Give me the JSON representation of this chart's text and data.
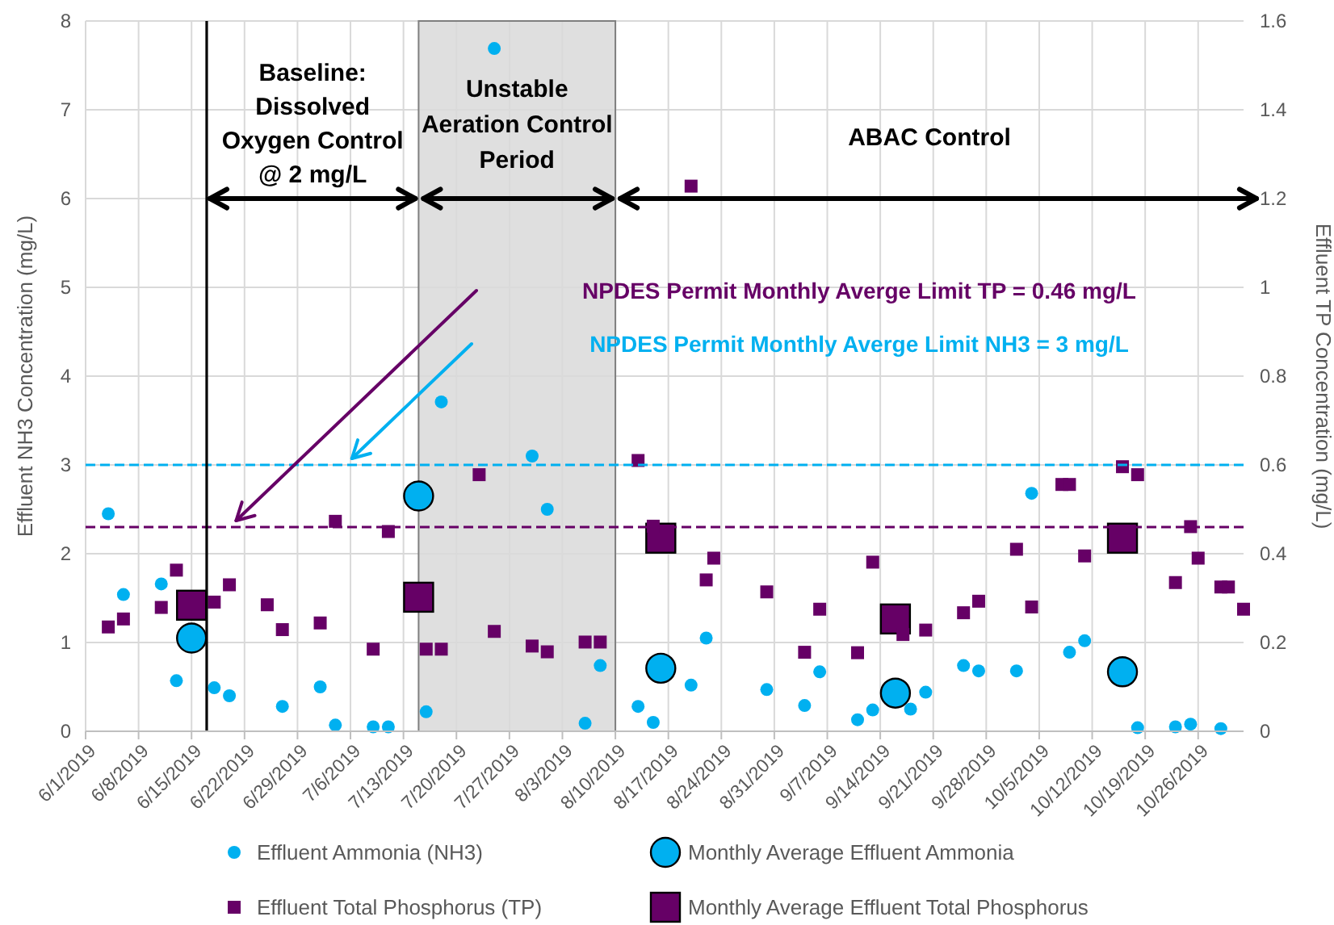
{
  "chart_data": {
    "type": "scatter",
    "ylabel": "Effluent NH3 Concentration (mg/L)",
    "y2label": "Effluent TP Concentration (mg/L)",
    "xlim": [
      "2019-06-01",
      "2019-11-01"
    ],
    "xticks": [
      {
        "value": "2019-06-01",
        "label": "6/1/2019"
      },
      {
        "value": "2019-06-08",
        "label": "6/8/2019"
      },
      {
        "value": "2019-06-15",
        "label": "6/15/2019"
      },
      {
        "value": "2019-06-22",
        "label": "6/22/2019"
      },
      {
        "value": "2019-06-29",
        "label": "6/29/2019"
      },
      {
        "value": "2019-07-06",
        "label": "7/6/2019"
      },
      {
        "value": "2019-07-13",
        "label": "7/13/2019"
      },
      {
        "value": "2019-07-20",
        "label": "7/20/2019"
      },
      {
        "value": "2019-07-27",
        "label": "7/27/2019"
      },
      {
        "value": "2019-08-03",
        "label": "8/3/2019"
      },
      {
        "value": "2019-08-10",
        "label": "8/10/2019"
      },
      {
        "value": "2019-08-17",
        "label": "8/17/2019"
      },
      {
        "value": "2019-08-24",
        "label": "8/24/2019"
      },
      {
        "value": "2019-08-31",
        "label": "8/31/2019"
      },
      {
        "value": "2019-09-07",
        "label": "9/7/2019"
      },
      {
        "value": "2019-09-14",
        "label": "9/14/2019"
      },
      {
        "value": "2019-09-21",
        "label": "9/21/2019"
      },
      {
        "value": "2019-09-28",
        "label": "9/28/2019"
      },
      {
        "value": "2019-10-05",
        "label": "10/5/2019"
      },
      {
        "value": "2019-10-12",
        "label": "10/12/2019"
      },
      {
        "value": "2019-10-19",
        "label": "10/19/2019"
      },
      {
        "value": "2019-10-26",
        "label": "10/26/2019"
      }
    ],
    "ylim": [
      0,
      8
    ],
    "yticks": [
      0,
      1,
      2,
      3,
      4,
      5,
      6,
      7,
      8
    ],
    "y2lim": [
      0,
      1.6
    ],
    "y2ticks": [
      0,
      0.2,
      0.4,
      0.6,
      0.8,
      1,
      1.2,
      1.4,
      1.6
    ],
    "grid": true,
    "legend": "bottom",
    "series": [
      {
        "name": "Effluent Ammonia (NH3)",
        "color": "#00b0f0",
        "marker": "circle",
        "x": [
          "2019-06-04",
          "2019-06-06",
          "2019-06-11",
          "2019-06-13",
          "2019-06-18",
          "2019-06-20",
          "2019-06-27",
          "2019-07-02",
          "2019-07-04",
          "2019-07-09",
          "2019-07-11",
          "2019-07-16",
          "2019-07-18",
          "2019-07-25",
          "2019-07-30",
          "2019-08-01",
          "2019-08-06",
          "2019-08-08",
          "2019-08-13",
          "2019-08-15",
          "2019-08-20",
          "2019-08-22",
          "2019-08-30",
          "2019-09-04",
          "2019-09-06",
          "2019-09-11",
          "2019-09-13",
          "2019-09-18",
          "2019-09-20",
          "2019-09-25",
          "2019-09-27",
          "2019-10-02",
          "2019-10-04",
          "2019-10-09",
          "2019-10-11",
          "2019-10-18",
          "2019-10-23",
          "2019-10-25",
          "2019-10-29"
        ],
        "values": [
          2.45,
          1.54,
          1.66,
          0.57,
          0.49,
          0.4,
          0.28,
          0.5,
          0.07,
          0.05,
          0.05,
          0.22,
          3.71,
          7.69,
          3.1,
          2.5,
          0.09,
          0.74,
          0.28,
          0.1,
          0.52,
          1.05,
          0.47,
          0.29,
          0.67,
          0.13,
          0.24,
          0.25,
          0.44,
          0.74,
          0.68,
          0.68,
          2.68,
          0.89,
          1.02,
          0.04,
          0.05,
          0.08,
          0.03
        ]
      },
      {
        "name": "Monthly Average Effluent Ammonia",
        "color": "#00b0f0",
        "marker": "circle",
        "x": [
          "2019-06-15",
          "2019-07-15",
          "2019-08-16",
          "2019-09-16",
          "2019-10-16"
        ],
        "values": [
          1.05,
          2.65,
          0.71,
          0.43,
          0.67
        ]
      },
      {
        "name": "Effluent Total Phosphorus (TP)",
        "color": "#660066",
        "marker": "square",
        "axis": "y2",
        "x": [
          "2019-06-04",
          "2019-06-06",
          "2019-06-11",
          "2019-06-13",
          "2019-06-18",
          "2019-06-20",
          "2019-06-25",
          "2019-06-27",
          "2019-07-02",
          "2019-07-04",
          "2019-07-09",
          "2019-07-11",
          "2019-07-16",
          "2019-07-18",
          "2019-07-23",
          "2019-07-25",
          "2019-07-30",
          "2019-08-01",
          "2019-08-06",
          "2019-08-08",
          "2019-08-13",
          "2019-08-15",
          "2019-08-20",
          "2019-08-22",
          "2019-08-23",
          "2019-08-30",
          "2019-09-04",
          "2019-09-06",
          "2019-09-11",
          "2019-09-13",
          "2019-09-17",
          "2019-09-20",
          "2019-09-25",
          "2019-09-27",
          "2019-10-02",
          "2019-10-04",
          "2019-10-08",
          "2019-10-09",
          "2019-10-11",
          "2019-10-16",
          "2019-10-18",
          "2019-10-23",
          "2019-10-25",
          "2019-10-26",
          "2019-10-29",
          "2019-10-30",
          "2019-11-01"
        ],
        "values": [
          0.235,
          0.253,
          0.279,
          0.363,
          0.291,
          0.33,
          0.285,
          0.229,
          0.244,
          0.473,
          0.185,
          0.45,
          0.185,
          0.185,
          0.578,
          0.225,
          0.192,
          0.179,
          0.201,
          0.201,
          0.61,
          0.462,
          1.228,
          0.341,
          0.39,
          0.314,
          0.178,
          0.275,
          0.177,
          0.381,
          0.218,
          0.228,
          0.267,
          0.293,
          0.41,
          0.28,
          0.556,
          0.556,
          0.395,
          0.596,
          0.578,
          0.335,
          0.461,
          0.39,
          0.325,
          0.325,
          0.275
        ]
      },
      {
        "name": "Monthly Average Effluent Total Phosphorus",
        "color": "#660066",
        "marker": "square",
        "axis": "y2",
        "x": [
          "2019-06-15",
          "2019-07-15",
          "2019-08-16",
          "2019-09-16",
          "2019-10-16"
        ],
        "values": [
          0.284,
          0.302,
          0.435,
          0.253,
          0.435
        ]
      }
    ],
    "ref_lines": [
      {
        "axis": "x",
        "value": "2019-06-17",
        "color": "#000000",
        "line_style": "solid"
      },
      {
        "axis": "y2",
        "value": 0.46,
        "label": "NPDES Permit Monthly Averge Limit TP = 0.46 mg/L",
        "color": "#660066",
        "line_style": "dashed"
      },
      {
        "axis": "y",
        "value": 3,
        "label": "NPDES Permit Monthly Averge Limit NH3 = 3 mg/L",
        "color": "#00b0f0",
        "line_style": "dashed"
      }
    ],
    "bands": [
      {
        "axis": "x",
        "from": "2019-07-15",
        "to": "2019-08-10",
        "label": "Unstable\nAeration Control\nPeriod",
        "color": "#d9d9d9"
      }
    ],
    "annotations": [
      "Baseline:\nDissolved\nOxygen Control\n@ 2 mg/L",
      "ABAC Control"
    ]
  }
}
